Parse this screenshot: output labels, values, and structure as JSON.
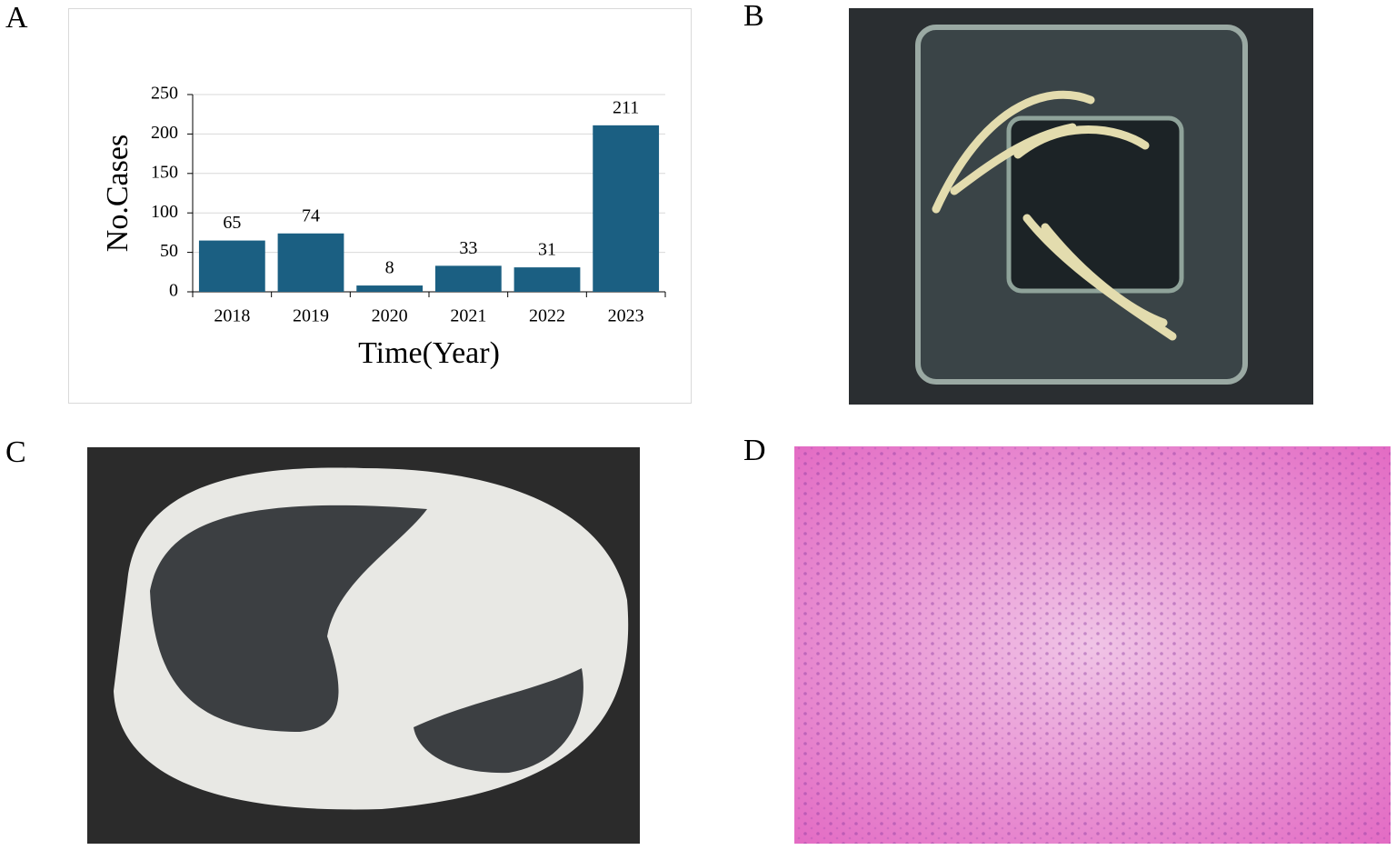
{
  "panel_labels": [
    "A",
    "B",
    "C",
    "D"
  ],
  "chart_data": {
    "type": "bar",
    "x_label": "Time(Year)",
    "y_label": "No.Cases",
    "categories": [
      "2018",
      "2019",
      "2020",
      "2021",
      "2022",
      "2023"
    ],
    "values": [
      65,
      74,
      8,
      33,
      31,
      211
    ],
    "color": "#1b5f82",
    "ylim": [
      0,
      250
    ],
    "yticks": [
      0,
      50,
      100,
      150,
      200,
      250
    ],
    "grid": true
  }
}
